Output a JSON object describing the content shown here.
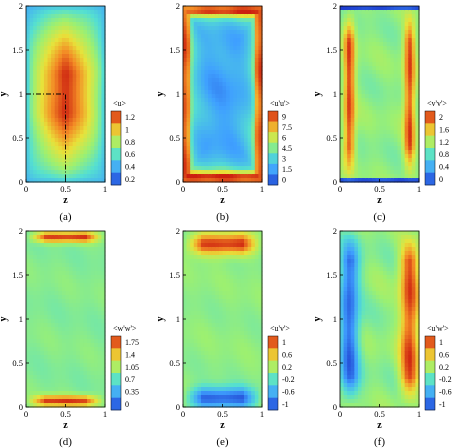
{
  "chart_data": [
    {
      "type": "heatmap",
      "caption": "(a)",
      "xlabel": "z",
      "ylabel": "y",
      "xlim": [
        0,
        1
      ],
      "ylim": [
        0,
        2
      ],
      "xticks": [
        "0",
        "0.5",
        "1"
      ],
      "yticks": [
        "0",
        "0.5",
        "1",
        "1.5",
        "2"
      ],
      "colorbar": {
        "title": "<u>",
        "levels": [
          "1.2",
          "1",
          "0.8",
          "0.6",
          "0.4",
          "0.2"
        ],
        "range": [
          0.2,
          1.3
        ]
      },
      "field": {
        "pattern": "centre-peak",
        "min": 0.2,
        "max": 1.3
      },
      "annotations": [
        {
          "type": "dash-dot guide",
          "points": [
            [
              0,
              1
            ],
            [
              0.5,
              1
            ],
            [
              0.5,
              0
            ]
          ]
        }
      ]
    },
    {
      "type": "heatmap",
      "caption": "(b)",
      "xlabel": "z",
      "ylabel": "y",
      "xlim": [
        0,
        1
      ],
      "ylim": [
        0,
        2
      ],
      "xticks": [
        "0",
        "0.5",
        "1"
      ],
      "yticks": [
        "0",
        "0.5",
        "1",
        "1.5",
        "2"
      ],
      "colorbar": {
        "title": "<u'u'>",
        "levels": [
          "9",
          "7.5",
          "6",
          "4.5",
          "3",
          "1.5",
          "0"
        ],
        "range": [
          0,
          9
        ]
      },
      "field": {
        "pattern": "wall-peak",
        "min": 0,
        "max": 9
      }
    },
    {
      "type": "heatmap",
      "caption": "(c)",
      "xlabel": "z",
      "ylabel": "y",
      "xlim": [
        0,
        1
      ],
      "ylim": [
        0,
        2
      ],
      "xticks": [
        "0",
        "0.5",
        "1"
      ],
      "yticks": [
        "0",
        "0.5",
        "1",
        "1.5",
        "2"
      ],
      "colorbar": {
        "title": "<v'v'>",
        "levels": [
          "2",
          "1.6",
          "1.2",
          "0.8",
          "0.4",
          "0"
        ],
        "range": [
          0,
          2
        ]
      },
      "field": {
        "pattern": "side-walls-peak",
        "min": 0,
        "max": 2
      }
    },
    {
      "type": "heatmap",
      "caption": "(d)",
      "xlabel": "z",
      "ylabel": "y",
      "xlim": [
        0,
        1
      ],
      "ylim": [
        0,
        2
      ],
      "xticks": [
        "0",
        "0.5",
        "1"
      ],
      "yticks": [
        "0",
        "0.5",
        "1",
        "1.5",
        "2"
      ],
      "colorbar": {
        "title": "<w'w'>",
        "levels": [
          "1.75",
          "1.4",
          "1.05",
          "0.7",
          "0.35",
          "0"
        ],
        "range": [
          0,
          1.75
        ]
      },
      "field": {
        "pattern": "top-bottom-peak",
        "min": 0,
        "max": 1.75
      }
    },
    {
      "type": "heatmap",
      "caption": "(e)",
      "xlabel": "z",
      "ylabel": "y",
      "xlim": [
        0,
        1
      ],
      "ylim": [
        0,
        2
      ],
      "xticks": [
        "0",
        "0.5",
        "1"
      ],
      "yticks": [
        "0",
        "0.5",
        "1",
        "1.5",
        "2"
      ],
      "colorbar": {
        "title": "<u'v'>",
        "levels": [
          "1",
          "0.6",
          "0.2",
          "-0.2",
          "-0.6",
          "-1"
        ],
        "range": [
          -1,
          1
        ]
      },
      "field": {
        "pattern": "top-positive-bottom-negative",
        "min": -1,
        "max": 1
      }
    },
    {
      "type": "heatmap",
      "caption": "(f)",
      "xlabel": "z",
      "ylabel": "y",
      "xlim": [
        0,
        1
      ],
      "ylim": [
        0,
        2
      ],
      "xticks": [
        "0",
        "0.5",
        "1"
      ],
      "yticks": [
        "0",
        "0.5",
        "1",
        "1.5",
        "2"
      ],
      "colorbar": {
        "title": "<u'w'>",
        "levels": [
          "1",
          "0.6",
          "0.2",
          "-0.2",
          "-0.6",
          "-1"
        ],
        "range": [
          -1,
          1
        ]
      },
      "field": {
        "pattern": "left-negative-right-positive",
        "min": -1,
        "max": 1
      }
    }
  ]
}
